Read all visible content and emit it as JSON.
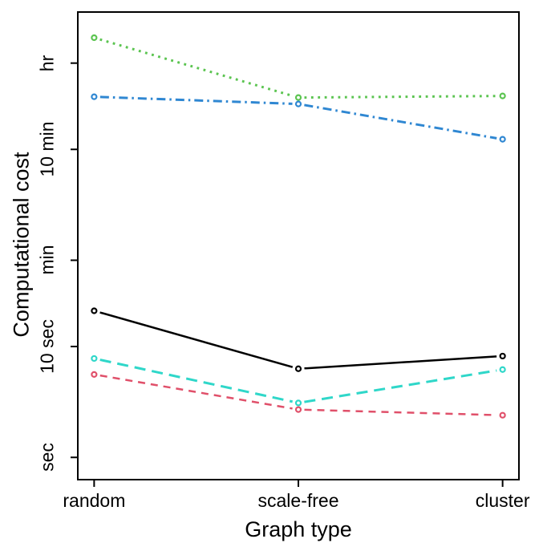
{
  "chart_data": {
    "type": "line",
    "title": "",
    "xlabel": "Graph type",
    "ylabel": "Computational cost",
    "categories": [
      "random",
      "scale-free",
      "cluster"
    ],
    "y_scale": "log10-time-in-seconds",
    "ylim_seconds": [
      0.63,
      10400
    ],
    "y_ticks": [
      {
        "label": "sec",
        "seconds": 1
      },
      {
        "label": "10 sec",
        "seconds": 10
      },
      {
        "label": "min",
        "seconds": 60
      },
      {
        "label": "10 min",
        "seconds": 600
      },
      {
        "label": "hr",
        "seconds": 3600
      }
    ],
    "legend": "none",
    "marker": "open-circle",
    "series": [
      {
        "name": "green-dotted",
        "color": "#5BC450",
        "dash": "dotted",
        "width": 3,
        "values_seconds": [
          6100,
          1760,
          1820
        ]
      },
      {
        "name": "blue-dashdot",
        "color": "#2F87D2",
        "dash": "dashdot",
        "width": 3,
        "values_seconds": [
          1790,
          1540,
          740
        ]
      },
      {
        "name": "black-solid",
        "color": "#000000",
        "dash": "solid",
        "width": 2.5,
        "values_seconds": [
          21,
          6.3,
          8.2
        ]
      },
      {
        "name": "cyan-longdash",
        "color": "#2FD7C9",
        "dash": "longdash",
        "width": 3,
        "values_seconds": [
          7.8,
          3.1,
          6.2
        ]
      },
      {
        "name": "red-dashed",
        "color": "#E0506A",
        "dash": "dashed",
        "width": 2.5,
        "values_seconds": [
          5.6,
          2.7,
          2.4
        ]
      }
    ]
  }
}
